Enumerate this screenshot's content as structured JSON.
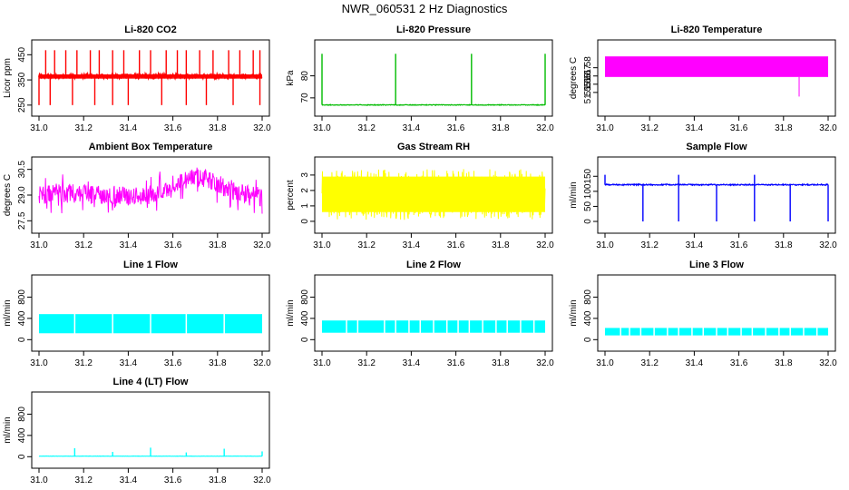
{
  "figure_title": "NWR_060531  2 Hz Diagnostics",
  "colors": {
    "co2": "#ff0000",
    "pressure": "#00bb00",
    "temperature": "#ff00ff",
    "ambient": "#ff00ff",
    "rh": "#ffff00",
    "sample": "#0000ff",
    "line": "#00ffff"
  },
  "chart_data": [
    {
      "id": "co2",
      "type": "line",
      "title": "Li-820 CO2",
      "ylabel": "Licor ppm",
      "color_key": "co2",
      "xlim": [
        31.0,
        32.0
      ],
      "ylim": [
        235,
        480
      ],
      "xticks": [
        31.0,
        31.2,
        31.4,
        31.6,
        31.8,
        32.0
      ],
      "xtick_labels": [
        "31.0",
        "31.2",
        "31.4",
        "31.6",
        "31.8",
        "32.0"
      ],
      "yticks": [
        250,
        350,
        450
      ],
      "ytick_labels": [
        "250",
        "350",
        "450"
      ],
      "baseline": 365,
      "noise": 6,
      "band": [
        355,
        372
      ],
      "spikes_up": [
        31.03,
        31.07,
        31.12,
        31.17,
        31.23,
        31.27,
        31.33,
        31.38,
        31.45,
        31.5,
        31.57,
        31.62,
        31.66,
        31.72,
        31.78,
        31.85,
        31.9,
        31.96,
        31.99
      ],
      "spike_up_value": 468,
      "spikes_down": [
        31.0,
        31.05,
        31.15,
        31.25,
        31.33,
        31.4,
        31.55,
        31.66,
        31.75,
        31.87,
        31.99
      ],
      "spike_down_value": 250
    },
    {
      "id": "pressure",
      "type": "line",
      "title": "Li-820 Pressure",
      "ylabel": "kPa",
      "color_key": "pressure",
      "xlim": [
        31.0,
        32.0
      ],
      "ylim": [
        65,
        93
      ],
      "xticks": [
        31.0,
        31.2,
        31.4,
        31.6,
        31.8,
        32.0
      ],
      "xtick_labels": [
        "31.0",
        "31.2",
        "31.4",
        "31.6",
        "31.8",
        "32.0"
      ],
      "yticks": [
        70,
        80
      ],
      "ytick_labels": [
        "70",
        "80"
      ],
      "baseline": 66.8,
      "noise": 0.15,
      "band": [
        66.5,
        67.2
      ],
      "spikes_up": [
        31.0,
        31.33,
        31.67,
        32.0
      ],
      "spike_up_value": 90
    },
    {
      "id": "li_temp",
      "type": "area",
      "title": "Li-820 Temperature",
      "ylabel": "degrees C",
      "color_key": "temperature",
      "xlim": [
        31.0,
        32.0
      ],
      "ylim": [
        51.53,
        51.605
      ],
      "xticks": [
        31.0,
        31.2,
        31.4,
        31.6,
        31.8,
        32.0
      ],
      "xtick_labels": [
        "31.0",
        "31.2",
        "31.4",
        "31.6",
        "31.8",
        "32.0"
      ],
      "yticks": [
        51.55,
        51.56,
        51.57,
        51.58
      ],
      "ytick_labels": [
        "51.55",
        "51.56",
        "51.57",
        "51.58"
      ],
      "band": [
        51.5688,
        51.5938
      ],
      "spikes_down": [
        31.87
      ],
      "spike_down_value": 51.545
    },
    {
      "id": "ambient",
      "type": "line",
      "title": "Ambient Box Temperature",
      "ylabel": "degrees C",
      "color_key": "ambient",
      "xlim": [
        31.0,
        32.0
      ],
      "ylim": [
        27.2,
        30.8
      ],
      "xticks": [
        31.0,
        31.2,
        31.4,
        31.6,
        31.8,
        32.0
      ],
      "xtick_labels": [
        "31.0",
        "31.2",
        "31.4",
        "31.6",
        "31.8",
        "32.0"
      ],
      "yticks": [
        27.5,
        29.0,
        30.5
      ],
      "ytick_labels": [
        "27.5",
        "29.0",
        "30.5"
      ],
      "trend_x": [
        31.0,
        31.1,
        31.2,
        31.3,
        31.4,
        31.5,
        31.55,
        31.6,
        31.65,
        31.7,
        31.75,
        31.8,
        31.85,
        31.9,
        31.95,
        32.0
      ],
      "trend_y": [
        29.0,
        29.1,
        29.1,
        29.0,
        29.0,
        29.0,
        29.2,
        29.6,
        29.9,
        30.1,
        30.0,
        29.7,
        29.3,
        29.1,
        29.0,
        28.9
      ],
      "noise": 0.55
    },
    {
      "id": "rh",
      "type": "line",
      "title": "Gas Stream RH",
      "ylabel": "percent",
      "color_key": "rh",
      "xlim": [
        31.0,
        32.0
      ],
      "ylim": [
        -0.3,
        3.7
      ],
      "xticks": [
        31.0,
        31.2,
        31.4,
        31.6,
        31.8,
        32.0
      ],
      "xtick_labels": [
        "31.0",
        "31.2",
        "31.4",
        "31.6",
        "31.8",
        "32.0"
      ],
      "yticks": [
        0,
        1,
        2,
        3
      ],
      "ytick_labels": [
        "0",
        "1",
        "2",
        "3"
      ],
      "center": 1.7,
      "band": [
        0.1,
        3.4
      ]
    },
    {
      "id": "sample",
      "type": "line",
      "title": "Sample Flow",
      "ylabel": "ml/min",
      "color_key": "sample",
      "xlim": [
        31.0,
        32.0
      ],
      "ylim": [
        -15,
        190
      ],
      "xticks": [
        31.0,
        31.2,
        31.4,
        31.6,
        31.8,
        32.0
      ],
      "xtick_labels": [
        "31.0",
        "31.2",
        "31.4",
        "31.6",
        "31.8",
        "32.0"
      ],
      "yticks": [
        0,
        50,
        100,
        150
      ],
      "ytick_labels": [
        "0",
        "50",
        "100",
        "150"
      ],
      "baseline": 122,
      "noise": 2,
      "spikes_down": [
        31.17,
        31.33,
        31.5,
        31.67,
        31.83,
        32.0
      ],
      "spike_down_value": 0,
      "spikes_up": [
        31.0,
        31.33,
        31.67
      ],
      "spike_up_value": 155
    },
    {
      "id": "line1",
      "type": "area",
      "title": "Line 1 Flow",
      "ylabel": "ml/min",
      "color_key": "line",
      "xlim": [
        31.0,
        32.0
      ],
      "ylim": [
        -80,
        1080
      ],
      "xticks": [
        31.0,
        31.2,
        31.4,
        31.6,
        31.8,
        32.0
      ],
      "xtick_labels": [
        "31.0",
        "31.2",
        "31.4",
        "31.6",
        "31.8",
        "32.0"
      ],
      "yticks": [
        0,
        400,
        800
      ],
      "ytick_labels": [
        "0",
        "400",
        "800"
      ],
      "band": [
        120,
        480
      ],
      "band_top_noise": 15,
      "gaps": [
        31.16,
        31.33,
        31.5,
        31.66,
        31.83
      ]
    },
    {
      "id": "line2",
      "type": "area",
      "title": "Line 2 Flow",
      "ylabel": "ml/min",
      "color_key": "line",
      "xlim": [
        31.0,
        32.0
      ],
      "ylim": [
        -80,
        1080
      ],
      "xticks": [
        31.0,
        31.2,
        31.4,
        31.6,
        31.8,
        32.0
      ],
      "xtick_labels": [
        "31.0",
        "31.2",
        "31.4",
        "31.6",
        "31.8",
        "32.0"
      ],
      "yticks": [
        0,
        400,
        800
      ],
      "ytick_labels": [
        "0",
        "400",
        "800"
      ],
      "band": [
        130,
        360
      ],
      "band_top_noise": 20,
      "gaps": [
        31.11,
        31.16,
        31.28,
        31.33,
        31.39,
        31.44,
        31.5,
        31.56,
        31.61,
        31.66,
        31.72,
        31.78,
        31.83,
        31.89,
        31.95
      ]
    },
    {
      "id": "line3",
      "type": "area",
      "title": "Line 3 Flow",
      "ylabel": "ml/min",
      "color_key": "line",
      "xlim": [
        31.0,
        32.0
      ],
      "ylim": [
        -80,
        1080
      ],
      "xticks": [
        31.0,
        31.2,
        31.4,
        31.6,
        31.8,
        32.0
      ],
      "xtick_labels": [
        "31.0",
        "31.2",
        "31.4",
        "31.6",
        "31.8",
        "32.0"
      ],
      "yticks": [
        0,
        400,
        800
      ],
      "ytick_labels": [
        "0",
        "400",
        "800"
      ],
      "band": [
        80,
        220
      ],
      "band_top_noise": 12,
      "gaps": [
        31.07,
        31.11,
        31.16,
        31.22,
        31.28,
        31.33,
        31.39,
        31.44,
        31.5,
        31.55,
        31.61,
        31.66,
        31.72,
        31.78,
        31.83,
        31.89,
        31.95
      ]
    },
    {
      "id": "line4",
      "type": "line",
      "title": "Line 4 (LT) Flow",
      "ylabel": "ml/min",
      "color_key": "line",
      "xlim": [
        31.0,
        32.0
      ],
      "ylim": [
        -80,
        1080
      ],
      "xticks": [
        31.0,
        31.2,
        31.4,
        31.6,
        31.8,
        32.0
      ],
      "xtick_labels": [
        "31.0",
        "31.2",
        "31.4",
        "31.6",
        "31.8",
        "32.0"
      ],
      "yticks": [
        0,
        400,
        800
      ],
      "ytick_labels": [
        "0",
        "400",
        "800"
      ],
      "baseline": 10,
      "noise": 2,
      "spikes_up": [
        31.16,
        31.33,
        31.5,
        31.66,
        31.83,
        32.0
      ],
      "spike_up_values": [
        160,
        90,
        170,
        80,
        150,
        100
      ]
    }
  ]
}
